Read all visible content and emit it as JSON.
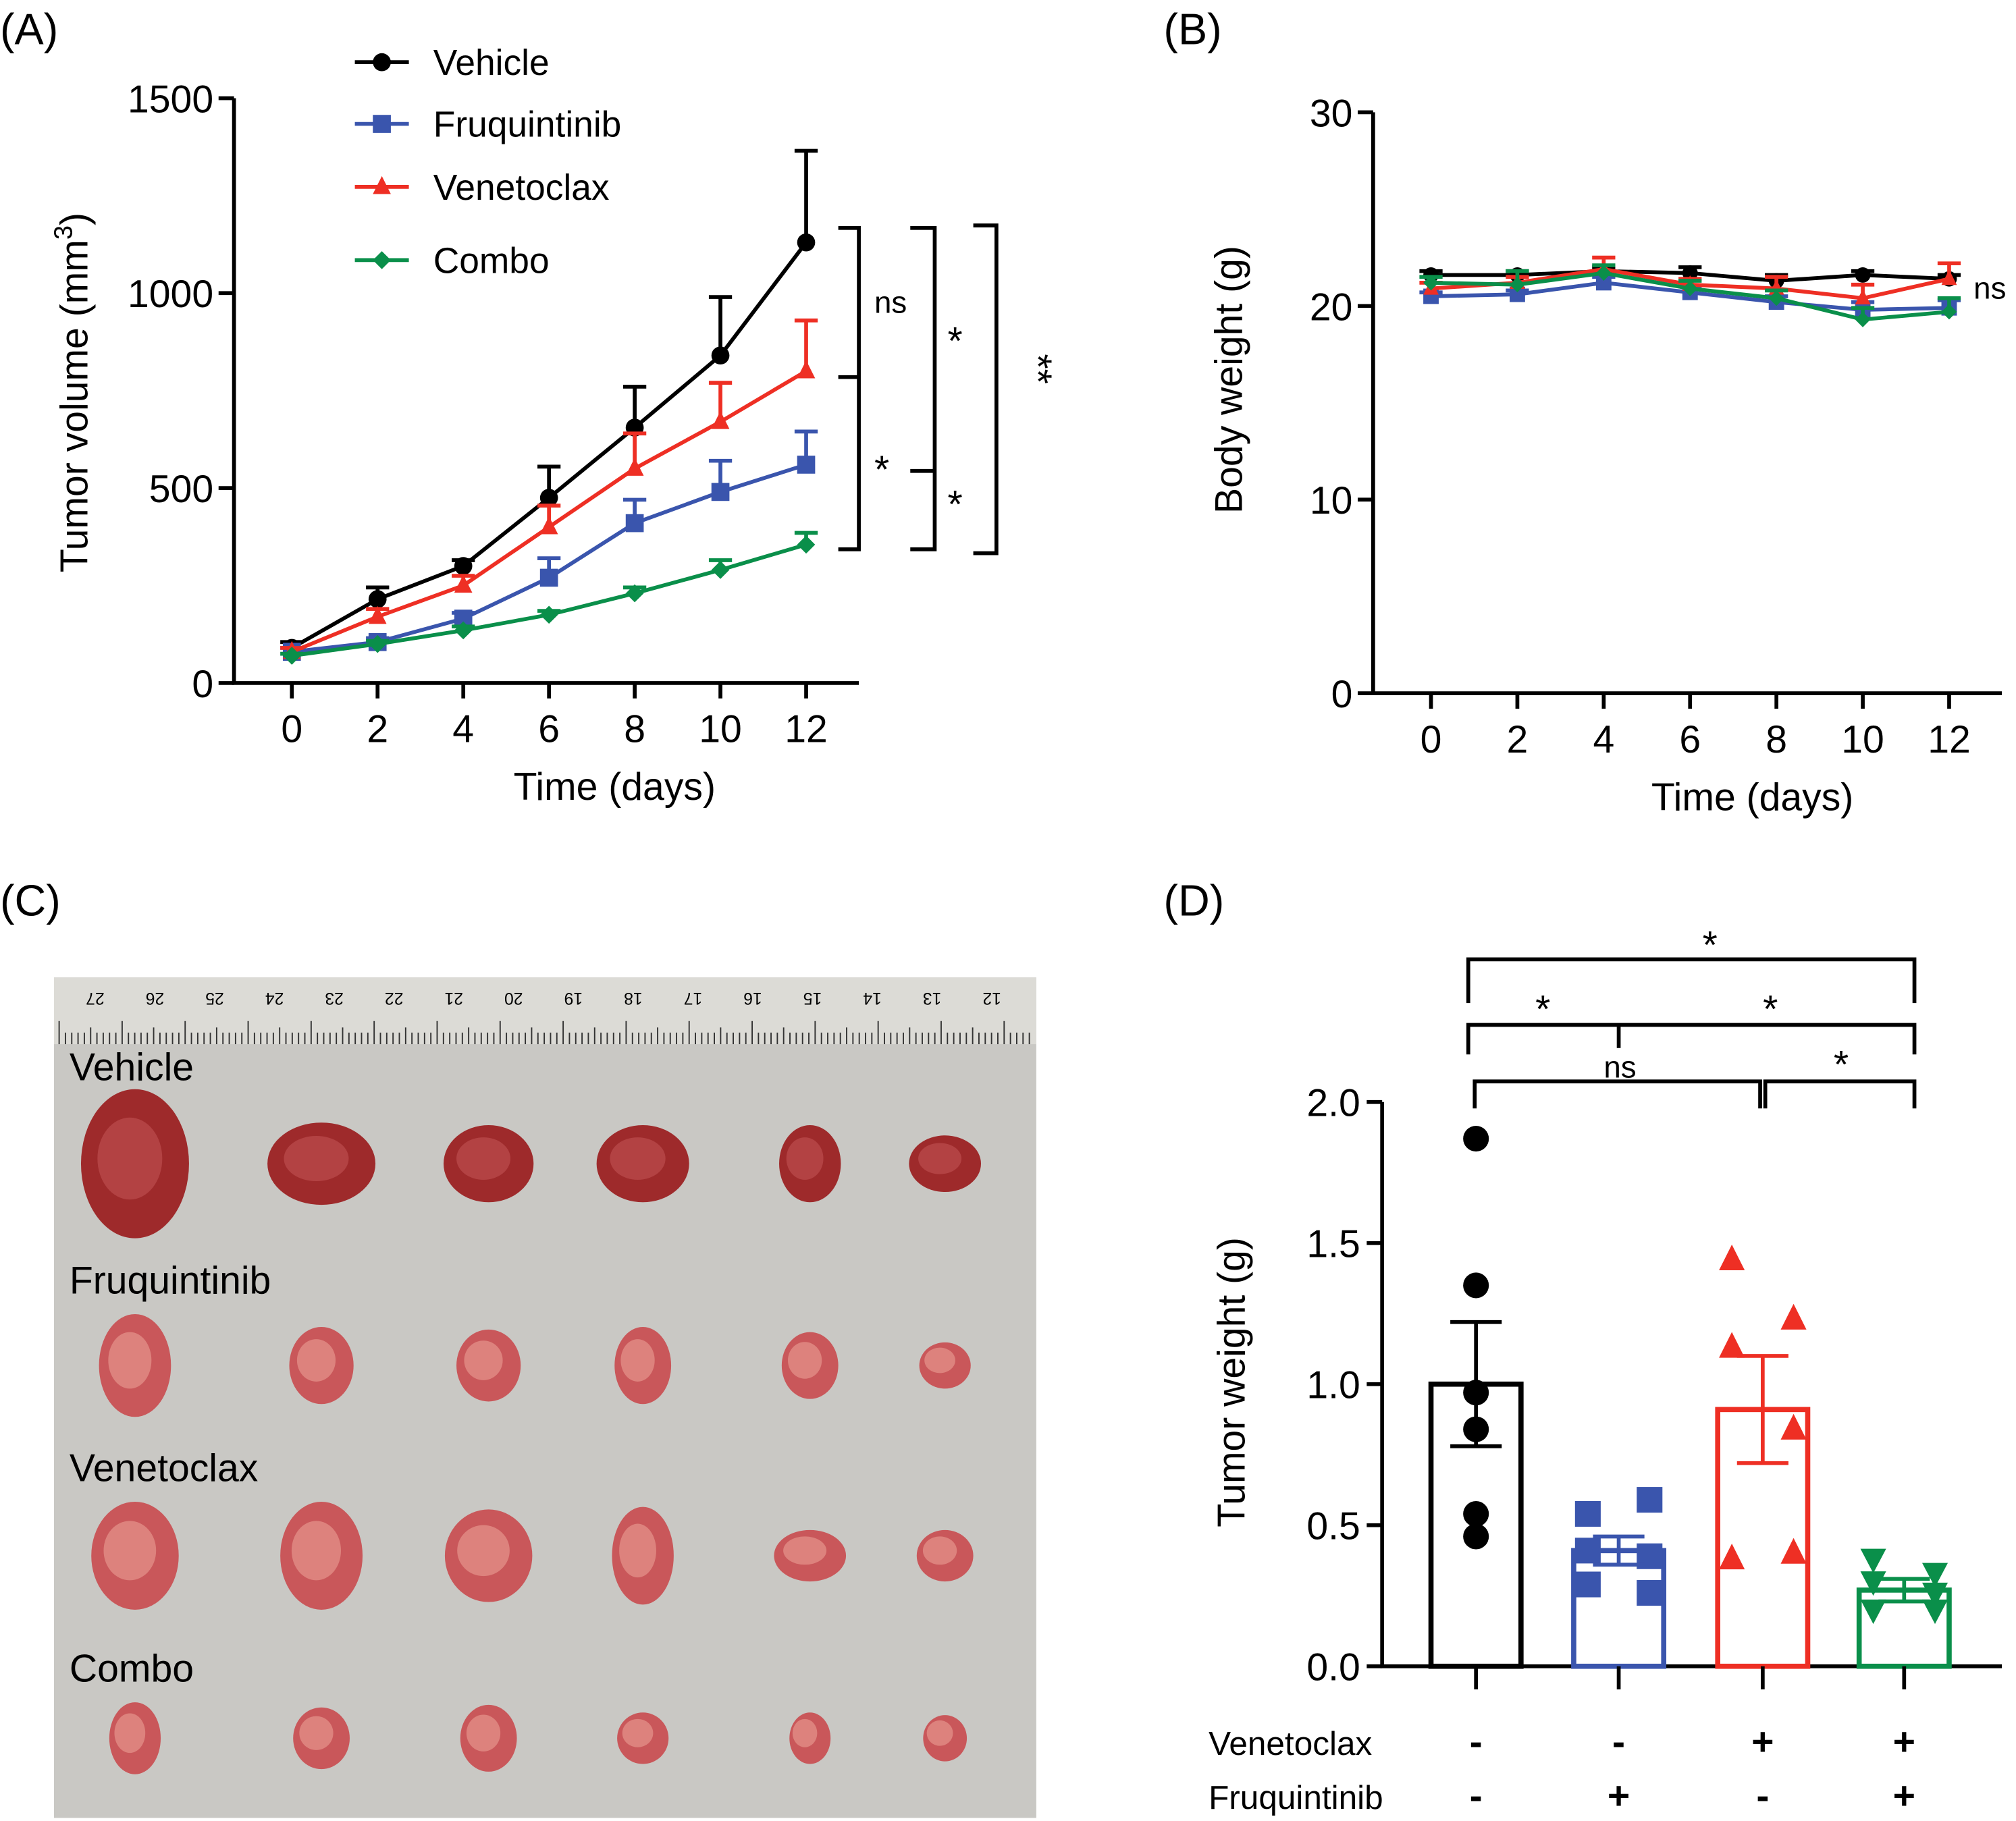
{
  "colors": {
    "Vehicle": "#000000",
    "Fruquintinib": "#3a55ad",
    "Venetoclax": "#ee2f24",
    "Combo": "#0a8f4a"
  },
  "panel_labels": [
    "(A)",
    "(B)",
    "(C)",
    "(D)"
  ],
  "chart_data": [
    {
      "type": "line",
      "title": "",
      "xlabel": "Time (days)",
      "ylabel": "Tumor volume (mm3)",
      "ylabel_main": "Tumor volume (mm",
      "ylabel_sup": "3",
      "ylabel_end": ")",
      "x": [
        0,
        2,
        4,
        6,
        8,
        10,
        12
      ],
      "xticks": [
        "0",
        "2",
        "4",
        "6",
        "8",
        "10",
        "12"
      ],
      "yticks": [
        "0",
        "500",
        "1000",
        "1500"
      ],
      "ylim": [
        0,
        1500
      ],
      "legend_position": "top",
      "series": [
        {
          "name": "Vehicle",
          "marker": "circle",
          "values": [
            90,
            215,
            300,
            475,
            655,
            840,
            1130
          ],
          "sem": [
            15,
            30,
            15,
            80,
            105,
            150,
            235
          ]
        },
        {
          "name": "Fruquintinib",
          "marker": "square",
          "values": [
            80,
            105,
            165,
            270,
            410,
            490,
            560
          ],
          "sem": [
            10,
            10,
            15,
            50,
            60,
            80,
            85
          ]
        },
        {
          "name": "Venetoclax",
          "marker": "triangle",
          "values": [
            80,
            170,
            250,
            400,
            550,
            670,
            800
          ],
          "sem": [
            10,
            20,
            25,
            55,
            90,
            100,
            130
          ]
        },
        {
          "name": "Combo",
          "marker": "diamond",
          "values": [
            70,
            100,
            135,
            175,
            230,
            290,
            355
          ],
          "sem": [
            5,
            8,
            10,
            10,
            15,
            25,
            30
          ]
        }
      ],
      "annotations": [
        "ns",
        "*",
        "*",
        "*",
        "**"
      ]
    },
    {
      "type": "line",
      "xlabel": "Time (days)",
      "ylabel": "Body weight (g)",
      "x": [
        0,
        2,
        4,
        6,
        8,
        10,
        12
      ],
      "xticks": [
        "0",
        "2",
        "4",
        "6",
        "8",
        "10",
        "12"
      ],
      "yticks": [
        "0",
        "10",
        "20",
        "30"
      ],
      "ylim": [
        0,
        30
      ],
      "series": [
        {
          "name": "Vehicle",
          "marker": "circle",
          "values": [
            21.6,
            21.6,
            21.8,
            21.7,
            21.3,
            21.6,
            21.4
          ],
          "sem": [
            0.2,
            0.2,
            0.2,
            0.3,
            0.3,
            0.2,
            0.2
          ]
        },
        {
          "name": "Fruquintinib",
          "marker": "square",
          "values": [
            20.5,
            20.6,
            21.2,
            20.7,
            20.2,
            19.8,
            19.9
          ],
          "sem": [
            0.2,
            0.2,
            0.3,
            0.3,
            0.3,
            0.4,
            0.4
          ]
        },
        {
          "name": "Venetoclax",
          "marker": "triangle",
          "values": [
            20.9,
            21.2,
            21.9,
            21.1,
            20.9,
            20.4,
            21.4
          ],
          "sem": [
            0.3,
            0.3,
            0.6,
            0.3,
            0.6,
            0.7,
            0.8
          ]
        },
        {
          "name": "Combo",
          "marker": "diamond",
          "values": [
            21.2,
            21.1,
            21.7,
            20.9,
            20.4,
            19.3,
            19.7
          ],
          "sem": [
            0.3,
            0.7,
            0.4,
            0.4,
            0.4,
            0.6,
            0.7
          ]
        }
      ],
      "annotation": "ns"
    },
    {
      "type": "bar",
      "ylabel": "Tumor weight (g)",
      "yticks": [
        "0.0",
        "0.5",
        "1.0",
        "1.5",
        "2.0"
      ],
      "ylim": [
        0,
        2
      ],
      "categories": [
        "Vehicle",
        "Fruquintinib",
        "Venetoclax",
        "Combo"
      ],
      "values": [
        1.0,
        0.41,
        0.91,
        0.27
      ],
      "sem": [
        0.22,
        0.05,
        0.19,
        0.04
      ],
      "points": [
        [
          1.87,
          1.35,
          0.97,
          0.84,
          0.54,
          0.46
        ],
        [
          0.54,
          0.59,
          0.41,
          0.39,
          0.29,
          0.26
        ],
        [
          1.44,
          1.23,
          1.13,
          0.84,
          0.38,
          0.4
        ],
        [
          0.38,
          0.33,
          0.3,
          0.26,
          0.2,
          0.2
        ]
      ],
      "row_labels": [
        "Venetoclax",
        "Fruquintinib"
      ],
      "venetoclax_signs": [
        "-",
        "-",
        "+",
        "+"
      ],
      "fruquintinib_signs": [
        "-",
        "+",
        "-",
        "+"
      ],
      "significance": [
        "*",
        "*",
        "*",
        "ns",
        "*"
      ]
    }
  ],
  "photo": {
    "row_labels": [
      "Vehicle",
      "Fruquintinib",
      "Venetoclax",
      "Combo"
    ],
    "ruler_numbers": [
      "27",
      "26",
      "25",
      "24",
      "23",
      "22",
      "21",
      "20",
      "19",
      "18",
      "17",
      "16",
      "15",
      "14",
      "13",
      "12"
    ]
  }
}
